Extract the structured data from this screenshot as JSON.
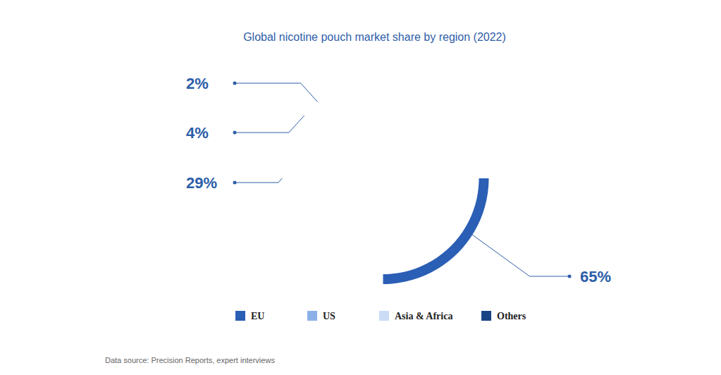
{
  "chart_data": {
    "type": "donut",
    "title": "Global nicotine pouch market share by region (2022)",
    "categories": [
      "EU",
      "US",
      "Asia & Africa",
      "Others"
    ],
    "values": [
      65,
      29,
      4,
      2
    ],
    "value_labels": [
      "65%",
      "29%",
      "4%",
      "2%"
    ],
    "colors": [
      "#2b5eb5",
      "#8cb0e8",
      "#cadcf6",
      "#1a4585"
    ],
    "data_labels": true,
    "legend": "bottom",
    "source": "Data source: Precision Reports, expert interviews"
  }
}
